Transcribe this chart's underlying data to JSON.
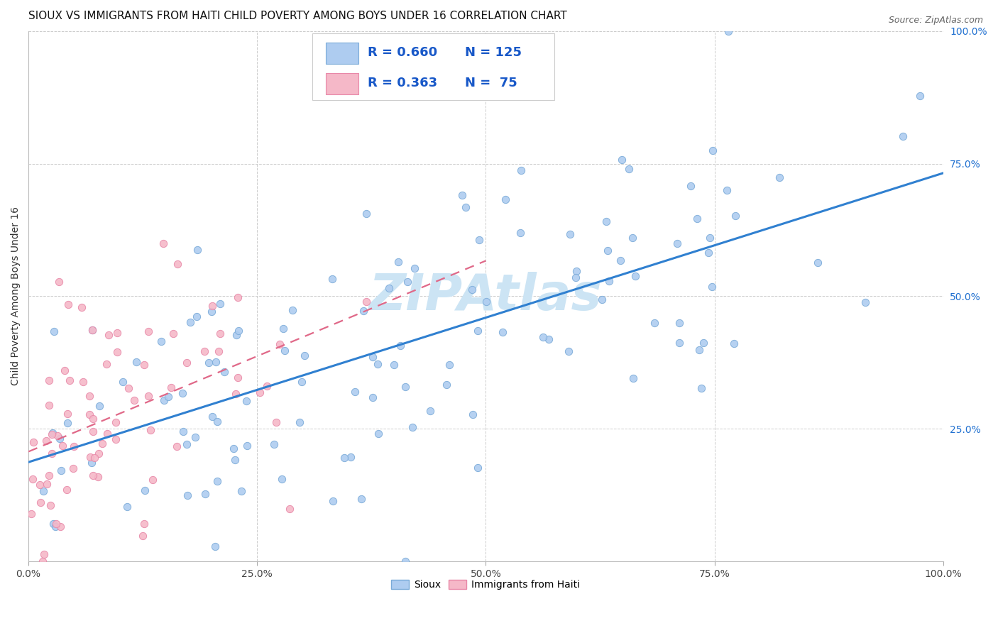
{
  "title": "SIOUX VS IMMIGRANTS FROM HAITI CHILD POVERTY AMONG BOYS UNDER 16 CORRELATION CHART",
  "source": "Source: ZipAtlas.com",
  "ylabel": "Child Poverty Among Boys Under 16",
  "sioux_R": 0.66,
  "sioux_N": 125,
  "haiti_R": 0.363,
  "haiti_N": 75,
  "sioux_color": "#aeccf0",
  "sioux_edge": "#7aaad8",
  "haiti_color": "#f5b8c8",
  "haiti_edge": "#e888a8",
  "sioux_line_color": "#3080d0",
  "haiti_line_color": "#e06888",
  "watermark": "ZIPAtlas",
  "watermark_color": "#cce4f4",
  "legend_R_color": "#1858c8",
  "legend_text_color": "#222222",
  "ytick_color": "#2070d0",
  "xtick_color": "#444444",
  "title_fontsize": 11,
  "legend_fontsize": 13,
  "axis_label_fontsize": 10,
  "tick_fontsize": 10,
  "source_fontsize": 9
}
